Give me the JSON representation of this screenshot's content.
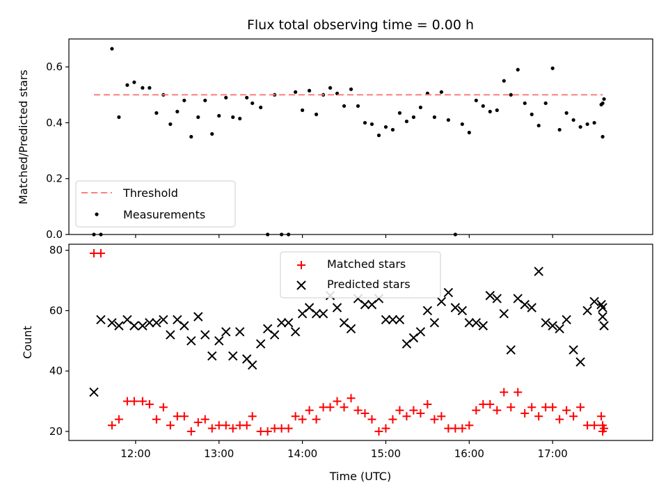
{
  "chart_data": [
    {
      "type": "scatter",
      "title": "Flux total observing time = 0.00 h",
      "xlabel": "",
      "ylabel": "Matched/Predicted stars",
      "xlim": [
        "11:12",
        "18:12"
      ],
      "ylim": [
        0,
        0.7
      ],
      "yticks": [
        0.0,
        0.2,
        0.4,
        0.6
      ],
      "ytick_labels": [
        "0.0",
        "0.2",
        "0.4",
        "0.6"
      ],
      "legend": {
        "position": "lower left",
        "entries": [
          "Threshold",
          "Measurements"
        ]
      },
      "threshold": {
        "name": "Threshold",
        "value": 0.5,
        "x_start": "11:30",
        "x_end": "17:36",
        "color": "#ff7f7f",
        "style": "dashed"
      },
      "series": [
        {
          "name": "Measurements",
          "color": "#000000",
          "marker": "dot",
          "x": [
            "11:30",
            "11:35",
            "11:43",
            "11:48",
            "11:54",
            "11:59",
            "12:05",
            "12:10",
            "12:15",
            "12:20",
            "12:25",
            "12:30",
            "12:35",
            "12:40",
            "12:45",
            "12:50",
            "12:55",
            "13:00",
            "13:05",
            "13:10",
            "13:15",
            "13:20",
            "13:24",
            "13:30",
            "13:35",
            "13:40",
            "13:45",
            "13:50",
            "13:55",
            "14:00",
            "14:05",
            "14:10",
            "14:15",
            "14:20",
            "14:25",
            "14:30",
            "14:35",
            "14:40",
            "14:45",
            "14:50",
            "14:55",
            "15:00",
            "15:05",
            "15:10",
            "15:15",
            "15:20",
            "15:25",
            "15:30",
            "15:35",
            "15:40",
            "15:45",
            "15:50",
            "15:55",
            "16:00",
            "16:05",
            "16:10",
            "16:15",
            "16:20",
            "16:25",
            "16:30",
            "16:35",
            "16:40",
            "16:45",
            "16:50",
            "16:55",
            "17:00",
            "17:05",
            "17:10",
            "17:15",
            "17:20",
            "17:25",
            "17:30",
            "17:35",
            "17:36",
            "17:36",
            "17:37"
          ],
          "y": [
            0.0,
            0.0,
            0.665,
            0.42,
            0.535,
            0.545,
            0.525,
            0.525,
            0.435,
            0.5,
            0.395,
            0.44,
            0.48,
            0.35,
            0.42,
            0.48,
            0.36,
            0.425,
            0.49,
            0.42,
            0.415,
            0.49,
            0.47,
            0.455,
            0.0,
            0.5,
            0.0,
            0.0,
            0.51,
            0.445,
            0.515,
            0.43,
            0.5,
            0.525,
            0.505,
            0.46,
            0.52,
            0.46,
            0.4,
            0.395,
            0.355,
            0.385,
            0.375,
            0.435,
            0.405,
            0.42,
            0.455,
            0.505,
            0.42,
            0.51,
            0.41,
            0.0,
            0.395,
            0.365,
            0.48,
            0.46,
            0.44,
            0.445,
            0.55,
            0.5,
            0.59,
            0.47,
            0.43,
            0.39,
            0.47,
            0.595,
            0.375,
            0.435,
            0.41,
            0.385,
            0.395,
            0.4,
            0.465,
            0.35,
            0.47,
            0.485
          ]
        }
      ]
    },
    {
      "type": "scatter",
      "title": "",
      "xlabel": "Time (UTC)",
      "ylabel": "Count",
      "xlim": [
        "11:12",
        "18:12"
      ],
      "ylim": [
        17,
        82
      ],
      "xticks": [
        "12:00",
        "13:00",
        "14:00",
        "15:00",
        "16:00",
        "17:00"
      ],
      "yticks": [
        20,
        40,
        60,
        80
      ],
      "ytick_labels": [
        "20",
        "40",
        "60",
        "80"
      ],
      "legend": {
        "position": "upper center",
        "entries": [
          "Matched stars",
          "Predicted stars"
        ]
      },
      "series": [
        {
          "name": "Matched stars",
          "color": "#ff0000",
          "marker": "plus",
          "x": [
            "11:30",
            "11:35",
            "11:43",
            "11:48",
            "11:54",
            "11:59",
            "12:05",
            "12:10",
            "12:15",
            "12:20",
            "12:25",
            "12:30",
            "12:35",
            "12:40",
            "12:45",
            "12:50",
            "12:55",
            "13:00",
            "13:05",
            "13:10",
            "13:15",
            "13:20",
            "13:24",
            "13:30",
            "13:35",
            "13:40",
            "13:45",
            "13:50",
            "13:55",
            "14:00",
            "14:05",
            "14:10",
            "14:15",
            "14:20",
            "14:25",
            "14:30",
            "14:35",
            "14:40",
            "14:45",
            "14:50",
            "14:55",
            "15:00",
            "15:05",
            "15:10",
            "15:15",
            "15:20",
            "15:25",
            "15:30",
            "15:35",
            "15:40",
            "15:45",
            "15:50",
            "15:55",
            "16:00",
            "16:05",
            "16:10",
            "16:15",
            "16:20",
            "16:25",
            "16:30",
            "16:35",
            "16:40",
            "16:45",
            "16:50",
            "16:55",
            "17:00",
            "17:05",
            "17:10",
            "17:15",
            "17:20",
            "17:25",
            "17:30",
            "17:35",
            "17:36",
            "17:36",
            "17:37"
          ],
          "y": [
            79,
            79,
            22,
            24,
            30,
            30,
            30,
            29,
            24,
            28,
            22,
            25,
            25,
            20,
            23,
            24,
            21,
            22,
            22,
            21,
            22,
            22,
            25,
            20,
            20,
            21,
            21,
            21,
            25,
            24,
            27,
            24,
            28,
            28,
            30,
            28,
            31,
            27,
            26,
            24,
            20,
            21,
            24,
            27,
            25,
            27,
            26,
            29,
            24,
            25,
            21,
            21,
            21,
            22,
            27,
            29,
            29,
            27,
            33,
            28,
            33,
            26,
            28,
            25,
            28,
            28,
            24,
            27,
            25,
            28,
            22,
            22,
            25,
            20,
            22,
            21
          ]
        },
        {
          "name": "Predicted stars",
          "color": "#000000",
          "marker": "x",
          "x": [
            "11:30",
            "11:35",
            "11:43",
            "11:48",
            "11:54",
            "11:59",
            "12:05",
            "12:10",
            "12:15",
            "12:20",
            "12:25",
            "12:30",
            "12:35",
            "12:40",
            "12:45",
            "12:50",
            "12:55",
            "13:00",
            "13:05",
            "13:10",
            "13:15",
            "13:20",
            "13:24",
            "13:30",
            "13:35",
            "13:40",
            "13:45",
            "13:50",
            "13:55",
            "14:00",
            "14:05",
            "14:10",
            "14:15",
            "14:20",
            "14:25",
            "14:30",
            "14:35",
            "14:40",
            "14:45",
            "14:50",
            "14:55",
            "15:00",
            "15:05",
            "15:10",
            "15:15",
            "15:20",
            "15:25",
            "15:30",
            "15:35",
            "15:40",
            "15:45",
            "15:50",
            "15:55",
            "16:00",
            "16:05",
            "16:10",
            "16:15",
            "16:20",
            "16:25",
            "16:30",
            "16:35",
            "16:40",
            "16:45",
            "16:50",
            "16:55",
            "17:00",
            "17:05",
            "17:10",
            "17:15",
            "17:20",
            "17:25",
            "17:30",
            "17:35",
            "17:36",
            "17:36",
            "17:37"
          ],
          "y": [
            33,
            57,
            56,
            55,
            57,
            55,
            55,
            56,
            56,
            57,
            52,
            57,
            55,
            50,
            58,
            52,
            45,
            50,
            53,
            45,
            53,
            44,
            42,
            49,
            54,
            52,
            56,
            56,
            53,
            59,
            61,
            59,
            59,
            65,
            61,
            56,
            54,
            64,
            62,
            62,
            64,
            57,
            57,
            57,
            49,
            51,
            53,
            60,
            56,
            63,
            66,
            61,
            60,
            56,
            56,
            55,
            65,
            64,
            59,
            47,
            64,
            62,
            61,
            73,
            56,
            55,
            54,
            57,
            47,
            43,
            60,
            63,
            62,
            61,
            58,
            55
          ]
        }
      ]
    }
  ]
}
